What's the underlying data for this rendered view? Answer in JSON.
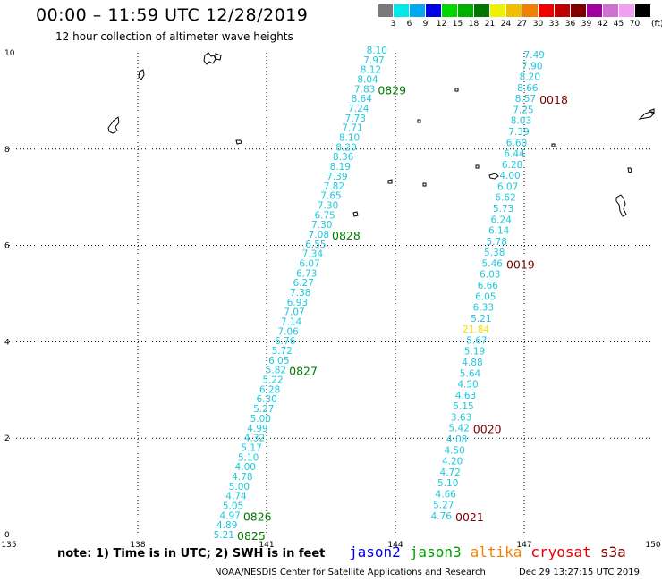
{
  "title": "00:00 – 11:59 UTC 12/28/2019",
  "subtitle": "12 hour collection of altimeter wave heights",
  "legend": {
    "units": "(ft)",
    "entries": [
      {
        "label": "3",
        "color": "#7a7a7a"
      },
      {
        "label": "6",
        "color": "#00e8e8"
      },
      {
        "label": "9",
        "color": "#00a8f0"
      },
      {
        "label": "12",
        "color": "#0000e8"
      },
      {
        "label": "15",
        "color": "#00d800"
      },
      {
        "label": "18",
        "color": "#00b000"
      },
      {
        "label": "21",
        "color": "#007800"
      },
      {
        "label": "24",
        "color": "#f0f000"
      },
      {
        "label": "27",
        "color": "#f0c000"
      },
      {
        "label": "30",
        "color": "#f08000"
      },
      {
        "label": "33",
        "color": "#f00000"
      },
      {
        "label": "36",
        "color": "#c00000"
      },
      {
        "label": "39",
        "color": "#800000"
      },
      {
        "label": "42",
        "color": "#a000a0"
      },
      {
        "label": "45",
        "color": "#d070d0"
      },
      {
        "label": "70",
        "color": "#f0a0f0"
      },
      {
        "label": "",
        "color": "#000000"
      }
    ]
  },
  "axes": {
    "x_ticks": [
      "135",
      "138",
      "141",
      "144",
      "147",
      "150"
    ],
    "y_ticks": [
      "0",
      "2",
      "4",
      "6",
      "8",
      "10"
    ]
  },
  "colors": {
    "wave_cyan": "#1ec8dc",
    "wave_yellow": "#f0e000",
    "time_green": "#007800",
    "time_darkred": "#7a0000"
  },
  "track1": {
    "values": [
      "8.10",
      "7.97",
      "8.12",
      "8.04",
      "7.83",
      "8.64",
      "7.24",
      "7.73",
      "7.71",
      "8.10",
      "8.20",
      "8.36",
      "8.19",
      "7.39",
      "7.82",
      "7.65",
      "7.30",
      "6.75",
      "7.30",
      "7.08",
      "6.55",
      "7.34",
      "6.07",
      "6.73",
      "6.27",
      "7.38",
      "6.93",
      "7.07",
      "7.14",
      "7.06",
      "6.76",
      "5.72",
      "6.05",
      "5.82",
      "5.22",
      "6.28",
      "6.30",
      "5.27",
      "5.00",
      "4.99",
      "4.32",
      "5.17",
      "5.10",
      "4.00",
      "4.78",
      "5.00",
      "4.74",
      "5.05",
      "4.97",
      "4.89",
      "5.21"
    ],
    "times": [
      {
        "label": "0829",
        "row": 4
      },
      {
        "label": "0828",
        "row": 19
      },
      {
        "label": "0827",
        "row": 33
      },
      {
        "label": "0826",
        "row": 48
      },
      {
        "label": "0825",
        "row": 50
      }
    ]
  },
  "track2": {
    "values": [
      "7.49",
      "7.90",
      "8.20",
      "8.66",
      "8.57",
      "7.25",
      "8.03",
      "7.39",
      "6.60",
      "6.44",
      "6.28",
      "4.00",
      "6.07",
      "6.62",
      "5.73",
      "6.24",
      "6.14",
      "5.78",
      "5.38",
      "5.46",
      "6.03",
      "6.66",
      "6.05",
      "6.33",
      "5.21",
      "21.84",
      "5.67",
      "5.19",
      "4.88",
      "5.64",
      "4.50",
      "4.63",
      "5.15",
      "3.63",
      "5.42",
      "4.08",
      "4.50",
      "4.20",
      "4.72",
      "5.10",
      "4.66",
      "5.27",
      "4.76"
    ],
    "highlight_index": 25,
    "times": [
      {
        "label": "0018",
        "row": 4
      },
      {
        "label": "0019",
        "row": 19
      },
      {
        "label": "0020",
        "row": 34
      },
      {
        "label": "0021",
        "row": 42
      }
    ]
  },
  "note": "note: 1) Time is in UTC; 2) SWH is in feet",
  "satellites": [
    {
      "name": "jason2",
      "color": "#0000e8"
    },
    {
      "name": "jason3",
      "color": "#00a000"
    },
    {
      "name": "altika",
      "color": "#f08000"
    },
    {
      "name": "cryosat",
      "color": "#e80000"
    },
    {
      "name": "s3a",
      "color": "#800000"
    }
  ],
  "credit": "NOAA/NESDIS Center for Satellite Applications and Research",
  "timestamp": "Dec 29 13:27:15 UTC 2019"
}
